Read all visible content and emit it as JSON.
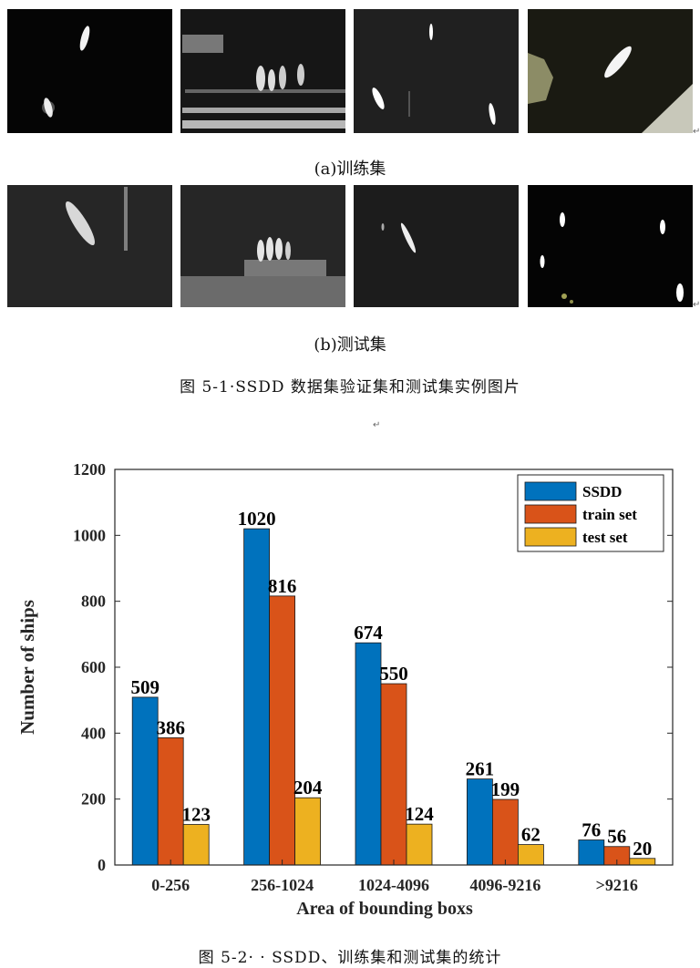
{
  "figure1": {
    "caption_a": "(a)训练集",
    "caption_b": "(b)测试集",
    "caption": "图 5-1·SSDD 数据集验证集和测试集实例图片",
    "images": [
      {
        "row": "a",
        "index": 1
      },
      {
        "row": "a",
        "index": 2
      },
      {
        "row": "a",
        "index": 3
      },
      {
        "row": "a",
        "index": 4
      },
      {
        "row": "b",
        "index": 1
      },
      {
        "row": "b",
        "index": 2
      },
      {
        "row": "b",
        "index": 3
      },
      {
        "row": "b",
        "index": 4
      }
    ],
    "para_mark": "↵"
  },
  "figure2": {
    "caption": "图 5-2· · SSDD、训练集和测试集的统计"
  },
  "chart_data": {
    "type": "bar",
    "title": "",
    "xlabel": "Area of bounding boxs",
    "ylabel": "Number of ships",
    "categories": [
      "0-256",
      "256-1024",
      "1024-4096",
      "4096-9216",
      ">9216"
    ],
    "series": [
      {
        "name": "SSDD",
        "values": [
          509,
          1020,
          674,
          261,
          76
        ],
        "color": "#0072BD"
      },
      {
        "name": "train set",
        "values": [
          386,
          816,
          550,
          199,
          56
        ],
        "color": "#D95319"
      },
      {
        "name": "test set",
        "values": [
          123,
          204,
          124,
          62,
          20
        ],
        "color": "#EDB120"
      }
    ],
    "ylim": [
      0,
      1200
    ],
    "yticks": [
      "0",
      "200",
      "400",
      "600",
      "800",
      "1000",
      "1200"
    ],
    "grid": false,
    "legend": "top-right"
  }
}
